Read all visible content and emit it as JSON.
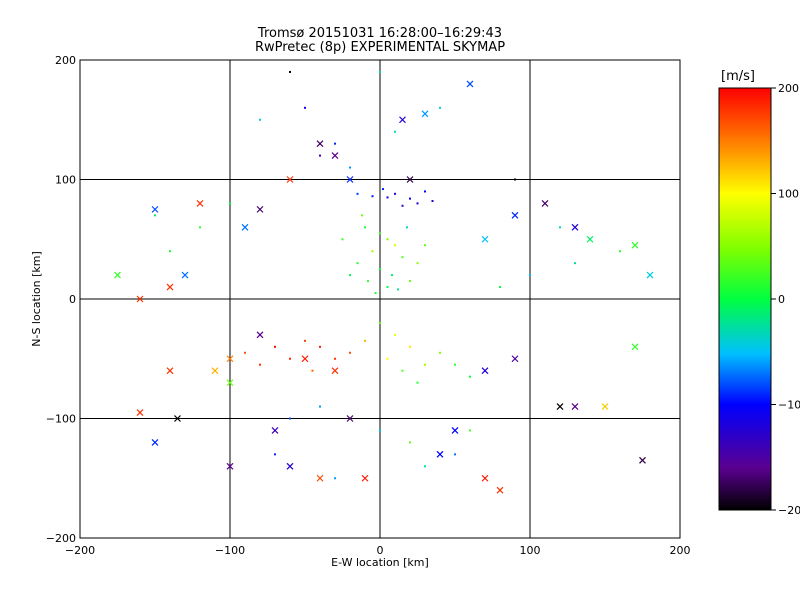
{
  "chart_data": {
    "type": "scatter",
    "title": "Tromsø 20151031 16:28:00–16:29:43",
    "subtitle": "RwPretec (8p) EXPERIMENTAL SKYMAP",
    "xlabel": "E-W location [km]",
    "ylabel": "N-S location [km]",
    "xlim": [
      -200,
      200
    ],
    "ylim": [
      -200,
      200
    ],
    "xticks": [
      "−200",
      "−100",
      "0",
      "100",
      "200"
    ],
    "yticks": [
      "200",
      "100",
      "0",
      "−100",
      "−200"
    ],
    "grid": true,
    "colorbar": {
      "label": "[m/s]",
      "range": [
        -200,
        200
      ],
      "ticks": [
        "200",
        "100",
        "0",
        "−100",
        "−200"
      ],
      "colormap": "rainbow (black→purple→blue→cyan→green→yellow→red)"
    },
    "series": [
      {
        "marker": "dot",
        "description": "small dots, colored by Doppler velocity",
        "points": [
          [
            5,
            85,
            -110
          ],
          [
            10,
            88,
            -120
          ],
          [
            20,
            84,
            -105
          ],
          [
            25,
            80,
            -115
          ],
          [
            -5,
            86,
            -95
          ],
          [
            15,
            78,
            -130
          ],
          [
            30,
            90,
            -100
          ],
          [
            -15,
            88,
            -85
          ],
          [
            35,
            82,
            -125
          ],
          [
            2,
            92,
            -90
          ],
          [
            -10,
            60,
            10
          ],
          [
            0,
            55,
            25
          ],
          [
            5,
            50,
            45
          ],
          [
            10,
            45,
            80
          ],
          [
            -5,
            40,
            60
          ],
          [
            15,
            35,
            30
          ],
          [
            -15,
            30,
            15
          ],
          [
            0,
            25,
            5
          ],
          [
            8,
            20,
            -10
          ],
          [
            -8,
            15,
            20
          ],
          [
            5,
            10,
            0
          ],
          [
            -3,
            5,
            10
          ],
          [
            12,
            8,
            -20
          ],
          [
            20,
            15,
            40
          ],
          [
            25,
            30,
            55
          ],
          [
            -20,
            20,
            -5
          ],
          [
            30,
            45,
            35
          ],
          [
            -25,
            50,
            20
          ],
          [
            18,
            60,
            -30
          ],
          [
            -12,
            70,
            45
          ],
          [
            0,
            -20,
            40
          ],
          [
            10,
            -30,
            90
          ],
          [
            -10,
            -35,
            130
          ],
          [
            20,
            -40,
            110
          ],
          [
            -20,
            -45,
            170
          ],
          [
            5,
            -50,
            100
          ],
          [
            -30,
            -50,
            180
          ],
          [
            30,
            -55,
            60
          ],
          [
            -40,
            -40,
            190
          ],
          [
            40,
            -45,
            50
          ],
          [
            -50,
            -35,
            175
          ],
          [
            -60,
            -50,
            185
          ],
          [
            -70,
            -40,
            195
          ],
          [
            -80,
            -55,
            180
          ],
          [
            -90,
            -45,
            170
          ],
          [
            -45,
            -60,
            160
          ],
          [
            15,
            -60,
            30
          ],
          [
            25,
            -70,
            10
          ],
          [
            50,
            -55,
            20
          ],
          [
            60,
            -65,
            0
          ],
          [
            -100,
            80,
            0
          ],
          [
            -120,
            60,
            20
          ],
          [
            -140,
            40,
            10
          ],
          [
            -150,
            70,
            -10
          ],
          [
            120,
            60,
            -30
          ],
          [
            140,
            50,
            10
          ],
          [
            160,
            40,
            20
          ],
          [
            130,
            30,
            -20
          ],
          [
            100,
            20,
            -50
          ],
          [
            80,
            10,
            0
          ],
          [
            -60,
            -100,
            -80
          ],
          [
            -40,
            -90,
            -60
          ],
          [
            0,
            -110,
            -50
          ],
          [
            20,
            -120,
            40
          ],
          [
            50,
            -130,
            -70
          ],
          [
            70,
            -150,
            -40
          ],
          [
            -30,
            -150,
            -60
          ],
          [
            -70,
            -130,
            -90
          ],
          [
            30,
            -140,
            -20
          ],
          [
            60,
            -110,
            30
          ],
          [
            -30,
            130,
            -90
          ],
          [
            -40,
            120,
            -150
          ],
          [
            10,
            140,
            -30
          ],
          [
            40,
            160,
            -40
          ],
          [
            -60,
            190,
            -200
          ],
          [
            -50,
            160,
            -110
          ],
          [
            -80,
            150,
            -40
          ],
          [
            -20,
            110,
            -60
          ],
          [
            0,
            190,
            -20
          ],
          [
            90,
            100,
            -200
          ]
        ]
      },
      {
        "marker": "x",
        "description": "larger crosses, colored by Doppler velocity",
        "points": [
          [
            -160,
            -95,
            180
          ],
          [
            -150,
            -120,
            -90
          ],
          [
            -135,
            -100,
            -200
          ],
          [
            -110,
            -60,
            130
          ],
          [
            -120,
            80,
            180
          ],
          [
            -130,
            20,
            -70
          ],
          [
            -150,
            75,
            -80
          ],
          [
            -175,
            20,
            20
          ],
          [
            -90,
            60,
            -70
          ],
          [
            -80,
            75,
            -170
          ],
          [
            -60,
            100,
            180
          ],
          [
            -40,
            130,
            -170
          ],
          [
            -30,
            120,
            -160
          ],
          [
            -20,
            100,
            -90
          ],
          [
            20,
            100,
            -180
          ],
          [
            15,
            150,
            -120
          ],
          [
            30,
            155,
            -60
          ],
          [
            60,
            180,
            -80
          ],
          [
            70,
            50,
            -50
          ],
          [
            90,
            70,
            -90
          ],
          [
            110,
            80,
            -170
          ],
          [
            130,
            60,
            -120
          ],
          [
            140,
            50,
            -10
          ],
          [
            170,
            45,
            20
          ],
          [
            180,
            20,
            -40
          ],
          [
            170,
            -40,
            20
          ],
          [
            150,
            -90,
            120
          ],
          [
            130,
            -90,
            -160
          ],
          [
            120,
            -90,
            -200
          ],
          [
            90,
            -50,
            -150
          ],
          [
            70,
            -60,
            -120
          ],
          [
            50,
            -110,
            -100
          ],
          [
            40,
            -130,
            -100
          ],
          [
            80,
            -160,
            180
          ],
          [
            70,
            -150,
            190
          ],
          [
            -10,
            -150,
            190
          ],
          [
            -40,
            -150,
            170
          ],
          [
            -60,
            -140,
            -120
          ],
          [
            -100,
            -140,
            -160
          ],
          [
            -70,
            -110,
            -140
          ],
          [
            -20,
            -100,
            -170
          ],
          [
            -30,
            -60,
            180
          ],
          [
            -50,
            -50,
            190
          ],
          [
            -80,
            -30,
            -160
          ],
          [
            -100,
            -50,
            150
          ],
          [
            -140,
            10,
            180
          ],
          [
            -160,
            0,
            180
          ],
          [
            -100,
            -70,
            40
          ],
          [
            -140,
            -60,
            180
          ],
          [
            175,
            -135,
            -180
          ]
        ]
      }
    ]
  }
}
